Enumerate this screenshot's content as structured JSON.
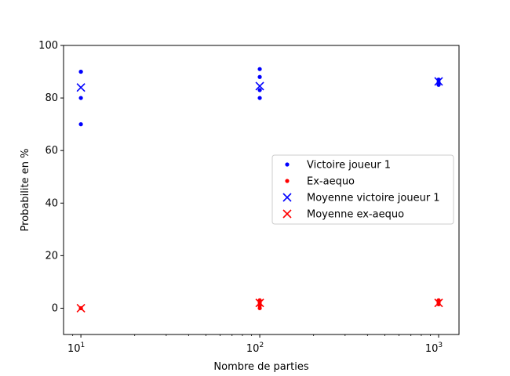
{
  "chart_data": {
    "type": "scatter",
    "xlabel": "Nombre de parties",
    "ylabel": "Probabilite en %",
    "xscale": "log",
    "xlim": [
      8,
      1300
    ],
    "ylim": [
      -10,
      100
    ],
    "xticks": [
      {
        "value": 10,
        "base": "10",
        "exp": "1"
      },
      {
        "value": 100,
        "base": "10",
        "exp": "2"
      },
      {
        "value": 1000,
        "base": "10",
        "exp": "3"
      }
    ],
    "yticks": [
      0,
      20,
      40,
      60,
      80,
      100
    ],
    "legend_position": "center-right",
    "series": [
      {
        "name": "Victoire joueur 1",
        "marker": "dot",
        "color": "#0000ff",
        "points": [
          [
            10,
            90
          ],
          [
            10,
            90
          ],
          [
            10,
            80
          ],
          [
            10,
            70
          ],
          [
            100,
            91
          ],
          [
            100,
            88
          ],
          [
            100,
            83
          ],
          [
            100,
            80
          ],
          [
            1000,
            87
          ],
          [
            1000,
            86
          ],
          [
            1000,
            85
          ]
        ]
      },
      {
        "name": "Ex-aequo",
        "marker": "dot",
        "color": "#ff0000",
        "points": [
          [
            10,
            0
          ],
          [
            10,
            0
          ],
          [
            100,
            3
          ],
          [
            100,
            2
          ],
          [
            100,
            1
          ],
          [
            100,
            0
          ],
          [
            1000,
            3
          ],
          [
            1000,
            2
          ],
          [
            1000,
            1.5
          ]
        ]
      },
      {
        "name": "Moyenne victoire joueur 1",
        "marker": "x",
        "color": "#0000ff",
        "points": [
          [
            10,
            84
          ],
          [
            100,
            84.5
          ],
          [
            1000,
            86.3
          ]
        ]
      },
      {
        "name": "Moyenne ex-aequo",
        "marker": "x",
        "color": "#ff0000",
        "points": [
          [
            10,
            0
          ],
          [
            100,
            2
          ],
          [
            1000,
            2
          ]
        ]
      }
    ]
  }
}
